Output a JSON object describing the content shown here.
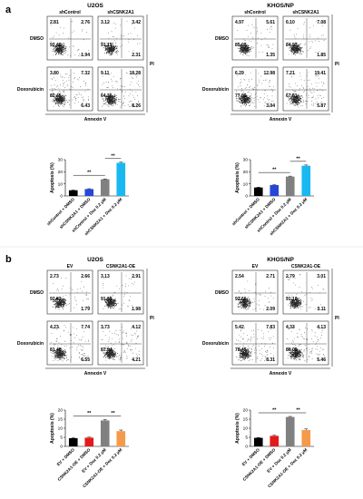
{
  "panel_a": {
    "label": "a",
    "xaxis": "Annexin V",
    "yaxis": "PI",
    "rows": [
      "DMSO",
      "Doxorubicin"
    ],
    "bar_ylabel": "Apoptosis (%)",
    "sig": "**",
    "left": {
      "title": "U2OS",
      "columns": [
        "shControl",
        "shCSNK2A1"
      ],
      "quadrants": [
        [
          [
            "2.81",
            "2.76",
            "92.49",
            "1.94"
          ],
          [
            "3.12",
            "3.42",
            "91.15",
            "2.31"
          ]
        ],
        [
          [
            "3.80",
            "7.32",
            "82.45",
            "6.43"
          ],
          [
            "9.11",
            "18.28",
            "64.35",
            "8.26"
          ]
        ]
      ]
    },
    "right": {
      "title": "KHOS/NP",
      "columns": [
        "shControl",
        "shCSNK2A1"
      ],
      "quadrants": [
        [
          [
            "4.97",
            "5.61",
            "85.07",
            "1.35"
          ],
          [
            "6.10",
            "7.08",
            "84.97",
            "1.85"
          ]
        ],
        [
          [
            "6.29",
            "12.98",
            "77.69",
            "3.04"
          ],
          [
            "7.21",
            "19.41",
            "67.51",
            "5.87"
          ]
        ]
      ]
    }
  },
  "panel_b": {
    "label": "b",
    "xaxis": "Annexin V",
    "yaxis": "PI",
    "rows": [
      "DMSO",
      "Doxorubicin"
    ],
    "bar_ylabel": "Apoptosis (%)",
    "sig": "**",
    "left": {
      "title": "U2OS",
      "columns": [
        "EV",
        "CSNK2A1-OE"
      ],
      "quadrants": [
        [
          [
            "2.73",
            "2.66",
            "92.82",
            "1.79"
          ],
          [
            "3.13",
            "2.91",
            "91.98",
            "1.98"
          ]
        ],
        [
          [
            "4.23",
            "7.74",
            "81.48",
            "6.55"
          ],
          [
            "3.73",
            "4.12",
            "87.94",
            "4.21"
          ]
        ]
      ]
    },
    "right": {
      "title": "KHOS/NP",
      "columns": [
        "EV",
        "CSNK2A1-OE"
      ],
      "quadrants": [
        [
          [
            "2.54",
            "2.71",
            "92.66",
            "2.09"
          ],
          [
            "2.79",
            "3.01",
            "91.10",
            "3.11"
          ]
        ],
        [
          [
            "5.42",
            "7.83",
            "78.45",
            "8.31"
          ],
          [
            "4.33",
            "4.13",
            "86.08",
            "5.46"
          ]
        ]
      ]
    }
  },
  "chart_data": [
    {
      "type": "bar",
      "panel": "a-U2OS",
      "ylabel": "Apoptosis (%)",
      "categories": [
        "shControl + DMSO",
        "shCSNK2A1 + DMSO",
        "shControl + Dox 0.2 μM",
        "shCSNK2A1 + Dox 0.2 μM"
      ],
      "values": [
        4.7,
        5.7,
        13.8,
        27.4
      ],
      "errors": [
        0.2,
        0.3,
        0.3,
        0.5
      ],
      "colors": [
        "#000000",
        "#2447d6",
        "#808080",
        "#19b8f0"
      ],
      "ylim": [
        0,
        30
      ],
      "yticks": [
        0,
        10,
        20,
        30
      ],
      "annotations": [
        {
          "text": "**",
          "from": 0,
          "to": 2
        },
        {
          "text": "**",
          "from": 2,
          "to": 3
        }
      ]
    },
    {
      "type": "bar",
      "panel": "a-KHOS/NP",
      "ylabel": "Apoptosis (%)",
      "categories": [
        "shControl + DMSO",
        "shCSNK2A1 + DMSO",
        "shControl + Dox 0.2 μM",
        "shCSNK2A1 + Dox 0.2 μM"
      ],
      "values": [
        7.0,
        9.0,
        16.0,
        25.0
      ],
      "errors": [
        0.3,
        0.3,
        0.4,
        0.6
      ],
      "colors": [
        "#000000",
        "#2447d6",
        "#808080",
        "#19b8f0"
      ],
      "ylim": [
        0,
        30
      ],
      "yticks": [
        0,
        10,
        20,
        30
      ],
      "annotations": [
        {
          "text": "**",
          "from": 0,
          "to": 2
        },
        {
          "text": "**",
          "from": 2,
          "to": 3
        }
      ]
    },
    {
      "type": "bar",
      "panel": "b-U2OS",
      "ylabel": "Apoptosis (%)",
      "categories": [
        "EV + DMSO",
        "CSNK2A1-OE + DMSO",
        "EV + Dox 0.2 μM",
        "CSNK2A1-OE + Dox 0.2 μM"
      ],
      "values": [
        4.5,
        4.8,
        14.3,
        8.4
      ],
      "errors": [
        0.2,
        0.3,
        0.4,
        0.6
      ],
      "colors": [
        "#000000",
        "#e31a1a",
        "#808080",
        "#f59a4a"
      ],
      "ylim": [
        0,
        20
      ],
      "yticks": [
        0,
        5,
        10,
        15,
        20
      ],
      "annotations": [
        {
          "text": "**",
          "from": 0,
          "to": 2
        },
        {
          "text": "**",
          "from": 2,
          "to": 3
        }
      ]
    },
    {
      "type": "bar",
      "panel": "b-KHOS/NP",
      "ylabel": "Apoptosis (%)",
      "categories": [
        "EV + DMSO",
        "CSNK2A1-OE + DMSO",
        "EV + Dox 0.2 μM",
        "CSNK2A1-OE + Dox 0.2 μM"
      ],
      "values": [
        4.7,
        5.8,
        16.2,
        9.0
      ],
      "errors": [
        0.2,
        0.3,
        0.3,
        0.6
      ],
      "colors": [
        "#000000",
        "#e31a1a",
        "#808080",
        "#f59a4a"
      ],
      "ylim": [
        0,
        20
      ],
      "yticks": [
        0,
        5,
        10,
        15,
        20
      ],
      "annotations": [
        {
          "text": "**",
          "from": 0,
          "to": 2
        },
        {
          "text": "**",
          "from": 2,
          "to": 3
        }
      ]
    }
  ]
}
